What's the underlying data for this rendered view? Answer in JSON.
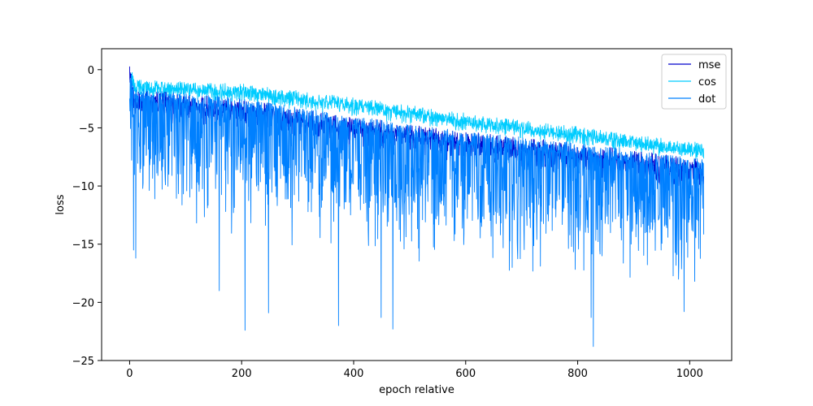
{
  "chart_data": {
    "type": "line",
    "xlabel": "epoch relative",
    "ylabel": "loss",
    "xlim": [
      -50,
      1075
    ],
    "ylim": [
      -25,
      1.8
    ],
    "xticks": [
      0,
      200,
      400,
      600,
      800,
      1000
    ],
    "yticks": [
      0,
      -5,
      -10,
      -15,
      -20,
      -25
    ],
    "legend_position": "top-right",
    "series": [
      {
        "name": "mse",
        "color": "#0000cc",
        "summary": {
          "x_start": 0,
          "x_end": 1025,
          "upper_envelope": [
            {
              "x": 0,
              "y": 0.4
            },
            {
              "x": 10,
              "y": -1.6
            },
            {
              "x": 200,
              "y": -2.5
            },
            {
              "x": 400,
              "y": -4.0
            },
            {
              "x": 600,
              "y": -5.3
            },
            {
              "x": 800,
              "y": -6.3
            },
            {
              "x": 1025,
              "y": -7.7
            }
          ]
        }
      },
      {
        "name": "cos",
        "color": "#00ccff",
        "summary": {
          "x_start": 0,
          "x_end": 1025,
          "upper_envelope": [
            {
              "x": 0,
              "y": 0.5
            },
            {
              "x": 10,
              "y": -0.8
            },
            {
              "x": 200,
              "y": -1.2
            },
            {
              "x": 400,
              "y": -2.4
            },
            {
              "x": 600,
              "y": -3.7
            },
            {
              "x": 800,
              "y": -4.9
            },
            {
              "x": 1025,
              "y": -6.3
            }
          ]
        }
      },
      {
        "name": "dot",
        "color": "#0080ff",
        "summary": {
          "x_start": 0,
          "x_end": 1025,
          "lower_spikes": [
            {
              "x": 7,
              "y": -15.5
            },
            {
              "x": 11,
              "y": -16.2
            },
            {
              "x": 160,
              "y": -19.0
            },
            {
              "x": 206,
              "y": -22.4
            },
            {
              "x": 248,
              "y": -20.9
            },
            {
              "x": 373,
              "y": -22.0
            },
            {
              "x": 449,
              "y": -21.3
            },
            {
              "x": 470,
              "y": -22.3
            },
            {
              "x": 824,
              "y": -21.3
            },
            {
              "x": 828,
              "y": -23.8
            },
            {
              "x": 990,
              "y": -20.8
            }
          ]
        }
      }
    ]
  }
}
